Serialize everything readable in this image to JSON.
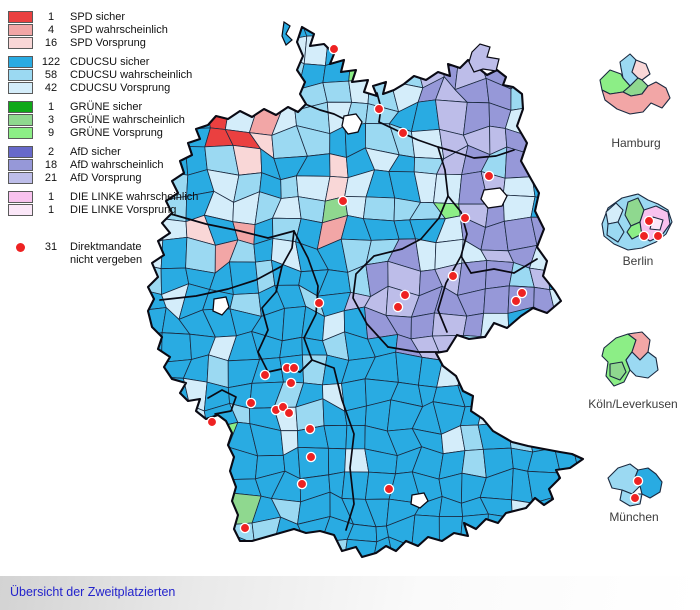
{
  "legend": {
    "groups": [
      {
        "name": "spd",
        "items": [
          {
            "count": "1",
            "label": "SPD sicher",
            "color": "#ea4040"
          },
          {
            "count": "4",
            "label": "SPD wahrscheinlich",
            "color": "#f2a6a6"
          },
          {
            "count": "16",
            "label": "SPD Vorsprung",
            "color": "#f9d7d7"
          }
        ]
      },
      {
        "name": "cducsu",
        "items": [
          {
            "count": "122",
            "label": "CDUCSU sicher",
            "color": "#29abe2"
          },
          {
            "count": "58",
            "label": "CDUCSU wahrscheinlich",
            "color": "#9bd9f2"
          },
          {
            "count": "42",
            "label": "CDUCSU Vorsprung",
            "color": "#d4edfa"
          }
        ]
      },
      {
        "name": "gruene",
        "items": [
          {
            "count": "1",
            "label": "GRÜNE sicher",
            "color": "#0fa818"
          },
          {
            "count": "3",
            "label": "GRÜNE wahrscheinlich",
            "color": "#8fd88f"
          },
          {
            "count": "9",
            "label": "GRÜNE Vorsprung",
            "color": "#8cee86"
          }
        ]
      },
      {
        "name": "afd",
        "items": [
          {
            "count": "2",
            "label": "AfD sicher",
            "color": "#6769ca"
          },
          {
            "count": "18",
            "label": "AfD wahrscheinlich",
            "color": "#9698d8"
          },
          {
            "count": "21",
            "label": "AfD Vorsprung",
            "color": "#bdbde9"
          }
        ]
      },
      {
        "name": "linke",
        "items": [
          {
            "count": "1",
            "label": "DIE LINKE wahrscheinlich",
            "color": "#f8c2ee"
          },
          {
            "count": "1",
            "label": "DIE LINKE Vorsprung",
            "color": "#fbe7f8"
          }
        ]
      }
    ],
    "direktmandate": {
      "count": "31",
      "label_line1": "Direktmandate",
      "label_line2": "nicht vergeben",
      "dot_color": "#ee2222"
    }
  },
  "insets": {
    "hamburg": {
      "label": "Hamburg"
    },
    "berlin": {
      "label": "Berlin"
    },
    "koeln": {
      "label": "Köln/Leverkusen"
    },
    "muenchen": {
      "label": "München"
    }
  },
  "footer": {
    "link_label": "Übersicht der Zweitplatzierten"
  },
  "map": {
    "direct_mandate_dots_total": 31
  },
  "palette": {
    "cyan": "#29abe2",
    "lightblue": "#9bd9f2",
    "paleblue": "#d4edfa",
    "red": "#ea4040",
    "salmon": "#f2a6a6",
    "palepink": "#f9d7d7",
    "green_s": "#0fa818",
    "green_w": "#8fd88f",
    "green_v": "#8cee86",
    "afd_s": "#6769ca",
    "afd_w": "#9698d8",
    "afd_v": "#bdbde9",
    "linke_w": "#f8c2ee",
    "linke_v": "#fbe7f8",
    "dot": "#ee2222",
    "border": "#1b2a40",
    "outline": "#0a0a14"
  }
}
